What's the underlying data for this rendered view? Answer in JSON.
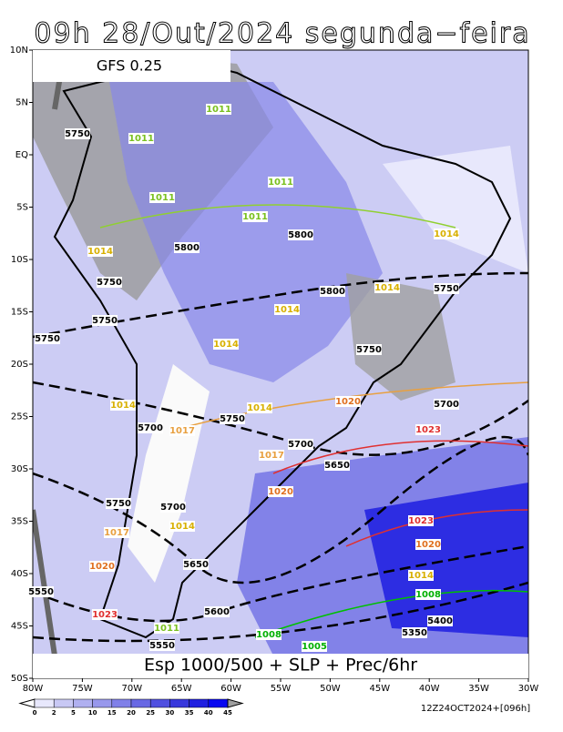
{
  "header": {
    "title": "09h 28/Out/2024 segunda−feira"
  },
  "model": "GFS 0.25",
  "caption": "Esp 1000/500 + SLP + Prec/6hr",
  "timestamp": "12Z24OCT2024+[096h]",
  "axes": {
    "lon": [
      "80W",
      "75W",
      "70W",
      "65W",
      "60W",
      "55W",
      "50W",
      "45W",
      "40W",
      "35W",
      "30W"
    ],
    "lat": [
      "10N",
      "5N",
      "EQ",
      "5S",
      "10S",
      "15S",
      "20S",
      "25S",
      "30S",
      "35S",
      "40S",
      "45S",
      "50S"
    ]
  },
  "colorbar": {
    "levels": [
      0,
      2,
      5,
      10,
      15,
      20,
      25,
      30,
      35,
      40,
      45
    ],
    "colors": [
      "#e8e8fc",
      "#c8c8f4",
      "#b0b0f0",
      "#9898ec",
      "#8080e8",
      "#6868e4",
      "#5050e0",
      "#3838dc",
      "#2020e0",
      "#0808f0"
    ]
  },
  "contour_labels": [
    5750,
    5800,
    5800,
    5750,
    5750,
    5750,
    5800,
    5750,
    5750,
    5700,
    5750,
    5700,
    5700,
    5650,
    5750,
    5700,
    5650,
    5600,
    5550,
    5550,
    5400,
    5350,
    1011,
    1011,
    1011,
    1011,
    1011,
    1014,
    1014,
    1014,
    1014,
    1014,
    1014,
    1014,
    1014,
    1014,
    1020,
    1020,
    1020,
    1020,
    1023,
    1023,
    1023,
    1017,
    1017,
    1017,
    1008,
    1008,
    1005,
    1011
  ]
}
